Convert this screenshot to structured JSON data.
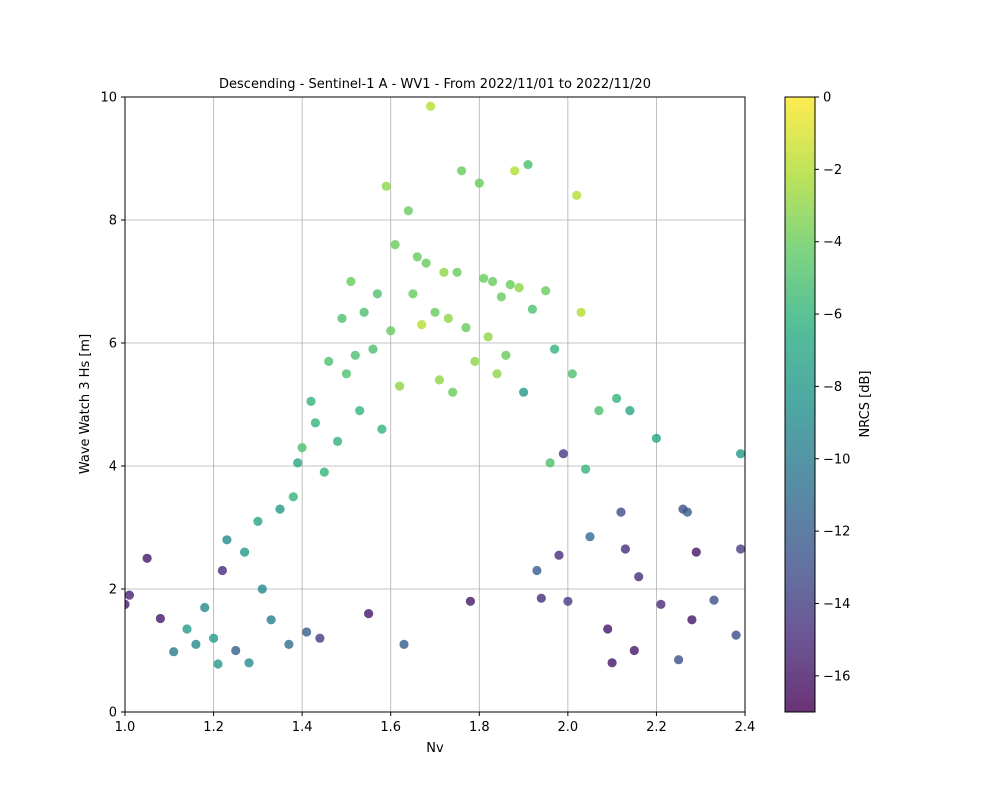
{
  "chart_data": {
    "type": "scatter",
    "title": "Descending - Sentinel-1 A - WV1 - From 2022/11/01 to 2022/11/20",
    "xlabel": "Nv",
    "ylabel": "Wave Watch 3 Hs [m]",
    "xlim": [
      1.0,
      2.4
    ],
    "ylim": [
      0,
      10
    ],
    "xticks": [
      "1.0",
      "1.2",
      "1.4",
      "1.6",
      "1.8",
      "2.0",
      "2.2",
      "2.4"
    ],
    "yticks": [
      "0",
      "2",
      "4",
      "6",
      "8",
      "10"
    ],
    "grid": true,
    "colorbar": {
      "label": "NRCS [dB]",
      "min": -17,
      "max": 0,
      "ticks": [
        "0",
        "−2",
        "−4",
        "−6",
        "−8",
        "−10",
        "−12",
        "−14",
        "−16"
      ],
      "colormap": "viridis"
    },
    "series": [
      {
        "points": [
          [
            1.0,
            1.75,
            -15.5
          ],
          [
            1.01,
            1.9,
            -15.5
          ],
          [
            1.05,
            2.5,
            -16
          ],
          [
            1.08,
            1.52,
            -16
          ],
          [
            1.11,
            0.98,
            -10
          ],
          [
            1.14,
            1.35,
            -8
          ],
          [
            1.16,
            1.1,
            -9
          ],
          [
            1.18,
            1.7,
            -9
          ],
          [
            1.2,
            1.2,
            -8
          ],
          [
            1.21,
            0.78,
            -8
          ],
          [
            1.22,
            2.3,
            -15
          ],
          [
            1.23,
            2.8,
            -9
          ],
          [
            1.25,
            1.0,
            -12
          ],
          [
            1.27,
            2.6,
            -8
          ],
          [
            1.28,
            0.8,
            -9
          ],
          [
            1.3,
            3.1,
            -7
          ],
          [
            1.31,
            2.0,
            -9
          ],
          [
            1.33,
            1.5,
            -10
          ],
          [
            1.35,
            3.3,
            -8
          ],
          [
            1.37,
            1.1,
            -11
          ],
          [
            1.38,
            3.5,
            -6
          ],
          [
            1.39,
            4.05,
            -7
          ],
          [
            1.4,
            4.3,
            -5
          ],
          [
            1.41,
            1.3,
            -12
          ],
          [
            1.42,
            5.05,
            -6
          ],
          [
            1.43,
            4.7,
            -6
          ],
          [
            1.44,
            1.2,
            -14
          ],
          [
            1.45,
            3.9,
            -6
          ],
          [
            1.46,
            5.7,
            -5
          ],
          [
            1.48,
            4.4,
            -6
          ],
          [
            1.49,
            6.4,
            -5
          ],
          [
            1.5,
            5.5,
            -5
          ],
          [
            1.51,
            7.0,
            -4
          ],
          [
            1.52,
            5.8,
            -5
          ],
          [
            1.53,
            4.9,
            -6
          ],
          [
            1.54,
            6.5,
            -5
          ],
          [
            1.55,
            1.6,
            -16
          ],
          [
            1.56,
            5.9,
            -5
          ],
          [
            1.57,
            6.8,
            -5
          ],
          [
            1.58,
            4.6,
            -6
          ],
          [
            1.59,
            8.55,
            -3
          ],
          [
            1.6,
            6.2,
            -4
          ],
          [
            1.61,
            7.6,
            -4
          ],
          [
            1.62,
            5.3,
            -3
          ],
          [
            1.63,
            1.1,
            -12
          ],
          [
            1.64,
            8.15,
            -4
          ],
          [
            1.65,
            6.8,
            -4
          ],
          [
            1.66,
            7.4,
            -4
          ],
          [
            1.67,
            6.3,
            -2
          ],
          [
            1.68,
            7.3,
            -4
          ],
          [
            1.69,
            9.85,
            -2
          ],
          [
            1.7,
            6.5,
            -4
          ],
          [
            1.71,
            5.4,
            -3
          ],
          [
            1.72,
            7.15,
            -3
          ],
          [
            1.73,
            6.4,
            -3
          ],
          [
            1.74,
            5.2,
            -4
          ],
          [
            1.75,
            7.15,
            -4
          ],
          [
            1.76,
            8.8,
            -4
          ],
          [
            1.77,
            6.25,
            -4
          ],
          [
            1.78,
            1.8,
            -16
          ],
          [
            1.79,
            5.7,
            -3
          ],
          [
            1.8,
            8.6,
            -4
          ],
          [
            1.81,
            7.05,
            -4
          ],
          [
            1.82,
            6.1,
            -3
          ],
          [
            1.83,
            7.0,
            -4
          ],
          [
            1.84,
            5.5,
            -3
          ],
          [
            1.85,
            6.75,
            -4
          ],
          [
            1.86,
            5.8,
            -4
          ],
          [
            1.87,
            6.95,
            -4
          ],
          [
            1.88,
            8.8,
            -2
          ],
          [
            1.89,
            6.9,
            -3
          ],
          [
            1.9,
            5.2,
            -8
          ],
          [
            1.91,
            8.9,
            -5
          ],
          [
            1.92,
            6.55,
            -5
          ],
          [
            1.93,
            2.3,
            -12
          ],
          [
            1.94,
            1.85,
            -15
          ],
          [
            1.95,
            6.85,
            -4
          ],
          [
            1.96,
            4.05,
            -5
          ],
          [
            1.97,
            5.9,
            -6
          ],
          [
            1.98,
            2.55,
            -15
          ],
          [
            1.99,
            4.2,
            -14
          ],
          [
            2.0,
            1.8,
            -14
          ],
          [
            2.01,
            5.5,
            -5
          ],
          [
            2.02,
            8.4,
            -2
          ],
          [
            2.03,
            6.5,
            -2
          ],
          [
            2.04,
            3.95,
            -6
          ],
          [
            2.05,
            2.85,
            -11
          ],
          [
            2.07,
            4.9,
            -5
          ],
          [
            2.09,
            1.35,
            -16
          ],
          [
            2.1,
            0.8,
            -16
          ],
          [
            2.11,
            5.1,
            -6
          ],
          [
            2.12,
            3.25,
            -13
          ],
          [
            2.13,
            2.65,
            -15
          ],
          [
            2.14,
            4.9,
            -7
          ],
          [
            2.15,
            1.0,
            -16
          ],
          [
            2.16,
            2.2,
            -15
          ],
          [
            2.2,
            4.45,
            -7
          ],
          [
            2.21,
            1.75,
            -15
          ],
          [
            2.25,
            0.85,
            -13
          ],
          [
            2.26,
            3.3,
            -13
          ],
          [
            2.27,
            3.25,
            -12
          ],
          [
            2.28,
            1.5,
            -16
          ],
          [
            2.29,
            2.6,
            -16
          ],
          [
            2.33,
            1.82,
            -13
          ],
          [
            2.38,
            1.25,
            -13
          ],
          [
            2.39,
            2.65,
            -14
          ],
          [
            2.39,
            4.2,
            -8
          ]
        ]
      }
    ]
  }
}
